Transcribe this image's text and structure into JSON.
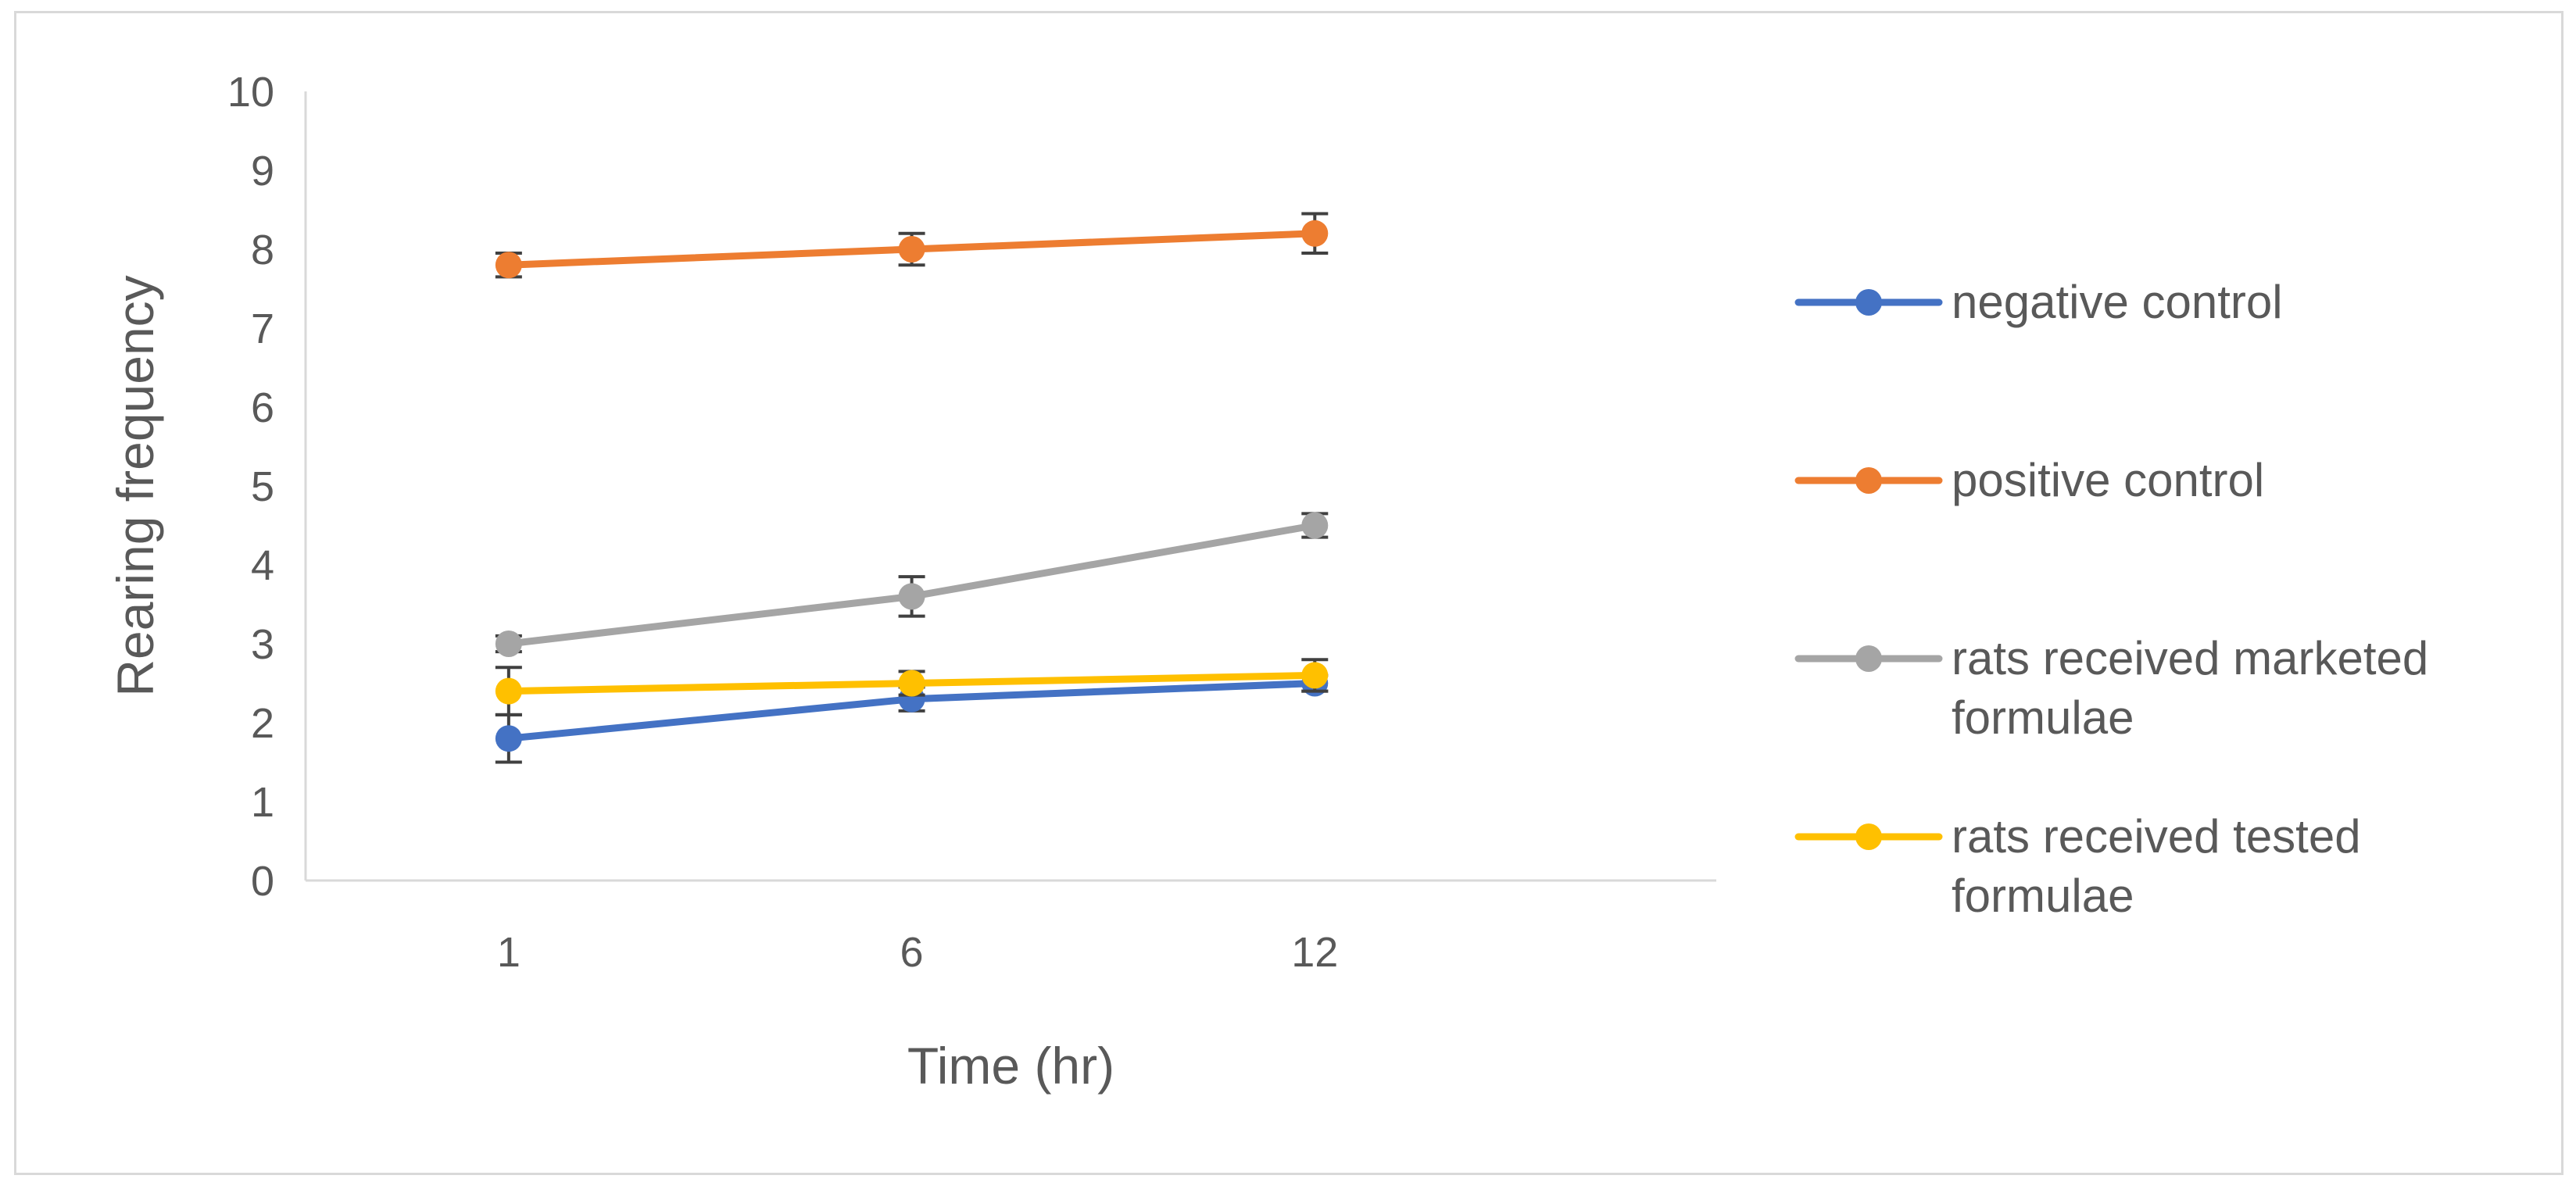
{
  "chart_data": {
    "type": "line",
    "title": "",
    "xlabel": "Time (hr)",
    "ylabel": "Rearing frequency",
    "categories": [
      "1",
      "6",
      "12"
    ],
    "ylim": [
      0,
      10
    ],
    "yticks": [
      0,
      1,
      2,
      3,
      4,
      5,
      6,
      7,
      8,
      9,
      10
    ],
    "grid": false,
    "legend_position": "right",
    "series": [
      {
        "name": "negative control",
        "legend_lines": [
          "negative control"
        ],
        "color": "#4472c4",
        "values": [
          1.8,
          2.3,
          2.5
        ],
        "errors": [
          0.3,
          0.15,
          0.1
        ]
      },
      {
        "name": "positive control",
        "legend_lines": [
          "positive control"
        ],
        "color": "#ed7d31",
        "values": [
          7.8,
          8.0,
          8.2
        ],
        "errors": [
          0.15,
          0.2,
          0.25
        ]
      },
      {
        "name": "rats received marketed formulae",
        "legend_lines": [
          "rats received marketed",
          "formulae"
        ],
        "color": "#a5a5a5",
        "values": [
          3.0,
          3.6,
          4.5
        ],
        "errors": [
          0.1,
          0.25,
          0.15
        ]
      },
      {
        "name": "rats received tested formulae",
        "legend_lines": [
          "rats received tested",
          "formulae"
        ],
        "color": "#ffc000",
        "values": [
          2.4,
          2.5,
          2.6
        ],
        "errors": [
          0.3,
          0.15,
          0.2
        ]
      }
    ]
  }
}
